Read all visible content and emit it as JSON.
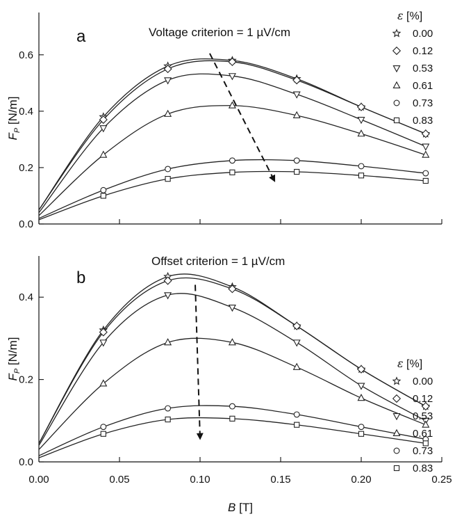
{
  "x_axis": {
    "label_main": "B",
    "label_unit": " [T]",
    "tick_labels": [
      "0.00",
      "0.05",
      "0.10",
      "0.15",
      "0.20",
      "0.25"
    ]
  },
  "chart_data": [
    {
      "type": "line",
      "panel_label": "a",
      "annotation": "Voltage criterion = 1 µV/cm",
      "ylabel_main": "F",
      "ylabel_sub": "P",
      "ylabel_unit": " [N/m]",
      "xlim": [
        0,
        0.25
      ],
      "ylim": [
        0,
        0.75
      ],
      "y_ticks": [
        0.0,
        0.2,
        0.4,
        0.6
      ],
      "y_tick_labels": [
        "0.0",
        "0.2",
        "0.4",
        "0.6"
      ],
      "legend": {
        "title_main": "ε",
        "title_unit": " [%]",
        "placement": "top-right"
      },
      "arrow": {
        "from": [
          0.106,
          0.605
        ],
        "to": [
          0.146,
          0.155
        ]
      },
      "series": [
        {
          "name": "0.00",
          "marker": "star",
          "x": [
            0.0,
            0.04,
            0.08,
            0.12,
            0.16,
            0.2,
            0.24
          ],
          "values": [
            0.05,
            0.38,
            0.56,
            0.58,
            0.515,
            0.415,
            0.32
          ]
        },
        {
          "name": "0.12",
          "marker": "diamond",
          "x": [
            0.0,
            0.04,
            0.08,
            0.12,
            0.16,
            0.2,
            0.24
          ],
          "values": [
            0.05,
            0.37,
            0.55,
            0.575,
            0.51,
            0.415,
            0.32
          ]
        },
        {
          "name": "0.53",
          "marker": "triangle-down",
          "x": [
            0.0,
            0.04,
            0.08,
            0.12,
            0.16,
            0.2,
            0.24
          ],
          "values": [
            0.04,
            0.34,
            0.51,
            0.525,
            0.46,
            0.37,
            0.275
          ]
        },
        {
          "name": "0.61",
          "marker": "triangle-up",
          "x": [
            0.0,
            0.04,
            0.08,
            0.12,
            0.16,
            0.2,
            0.24
          ],
          "values": [
            0.03,
            0.245,
            0.39,
            0.42,
            0.385,
            0.32,
            0.245
          ]
        },
        {
          "name": "0.73",
          "marker": "circle",
          "x": [
            0.0,
            0.04,
            0.08,
            0.12,
            0.16,
            0.2,
            0.24
          ],
          "values": [
            0.02,
            0.12,
            0.195,
            0.225,
            0.225,
            0.205,
            0.18
          ]
        },
        {
          "name": "0.83",
          "marker": "square",
          "x": [
            0.0,
            0.04,
            0.08,
            0.12,
            0.16,
            0.2,
            0.24
          ],
          "values": [
            0.015,
            0.1,
            0.16,
            0.183,
            0.185,
            0.172,
            0.153
          ]
        }
      ]
    },
    {
      "type": "line",
      "panel_label": "b",
      "annotation": "Offset criterion = 1 µV/cm",
      "ylabel_main": "F",
      "ylabel_sub": "P",
      "ylabel_unit": " [N/m]",
      "xlim": [
        0,
        0.25
      ],
      "ylim": [
        0,
        0.5
      ],
      "y_ticks": [
        0.0,
        0.2,
        0.4
      ],
      "y_tick_labels": [
        "0.0",
        "0.2",
        "0.4"
      ],
      "legend": {
        "title_main": "ε",
        "title_unit": " [%]",
        "placement": "top-right"
      },
      "arrow": {
        "from": [
          0.097,
          0.43
        ],
        "to": [
          0.1,
          0.058
        ]
      },
      "series": [
        {
          "name": "0.00",
          "marker": "star",
          "x": [
            0.0,
            0.04,
            0.08,
            0.12,
            0.16,
            0.2,
            0.24
          ],
          "values": [
            0.045,
            0.32,
            0.45,
            0.425,
            0.33,
            0.225,
            0.135
          ]
        },
        {
          "name": "0.12",
          "marker": "diamond",
          "x": [
            0.0,
            0.04,
            0.08,
            0.12,
            0.16,
            0.2,
            0.24
          ],
          "values": [
            0.045,
            0.315,
            0.44,
            0.42,
            0.33,
            0.225,
            0.135
          ]
        },
        {
          "name": "0.53",
          "marker": "triangle-down",
          "x": [
            0.0,
            0.04,
            0.08,
            0.12,
            0.16,
            0.2,
            0.24
          ],
          "values": [
            0.04,
            0.29,
            0.405,
            0.375,
            0.29,
            0.185,
            0.1
          ]
        },
        {
          "name": "0.61",
          "marker": "triangle-up",
          "x": [
            0.0,
            0.04,
            0.08,
            0.12,
            0.16,
            0.2,
            0.24
          ],
          "values": [
            0.03,
            0.19,
            0.29,
            0.29,
            0.23,
            0.155,
            0.09
          ]
        },
        {
          "name": "0.73",
          "marker": "circle",
          "x": [
            0.0,
            0.04,
            0.08,
            0.12,
            0.16,
            0.2,
            0.24
          ],
          "values": [
            0.015,
            0.085,
            0.13,
            0.135,
            0.115,
            0.085,
            0.055
          ]
        },
        {
          "name": "0.83",
          "marker": "square",
          "x": [
            0.0,
            0.04,
            0.08,
            0.12,
            0.16,
            0.2,
            0.24
          ],
          "values": [
            0.01,
            0.068,
            0.103,
            0.105,
            0.09,
            0.068,
            0.045
          ]
        }
      ]
    }
  ]
}
